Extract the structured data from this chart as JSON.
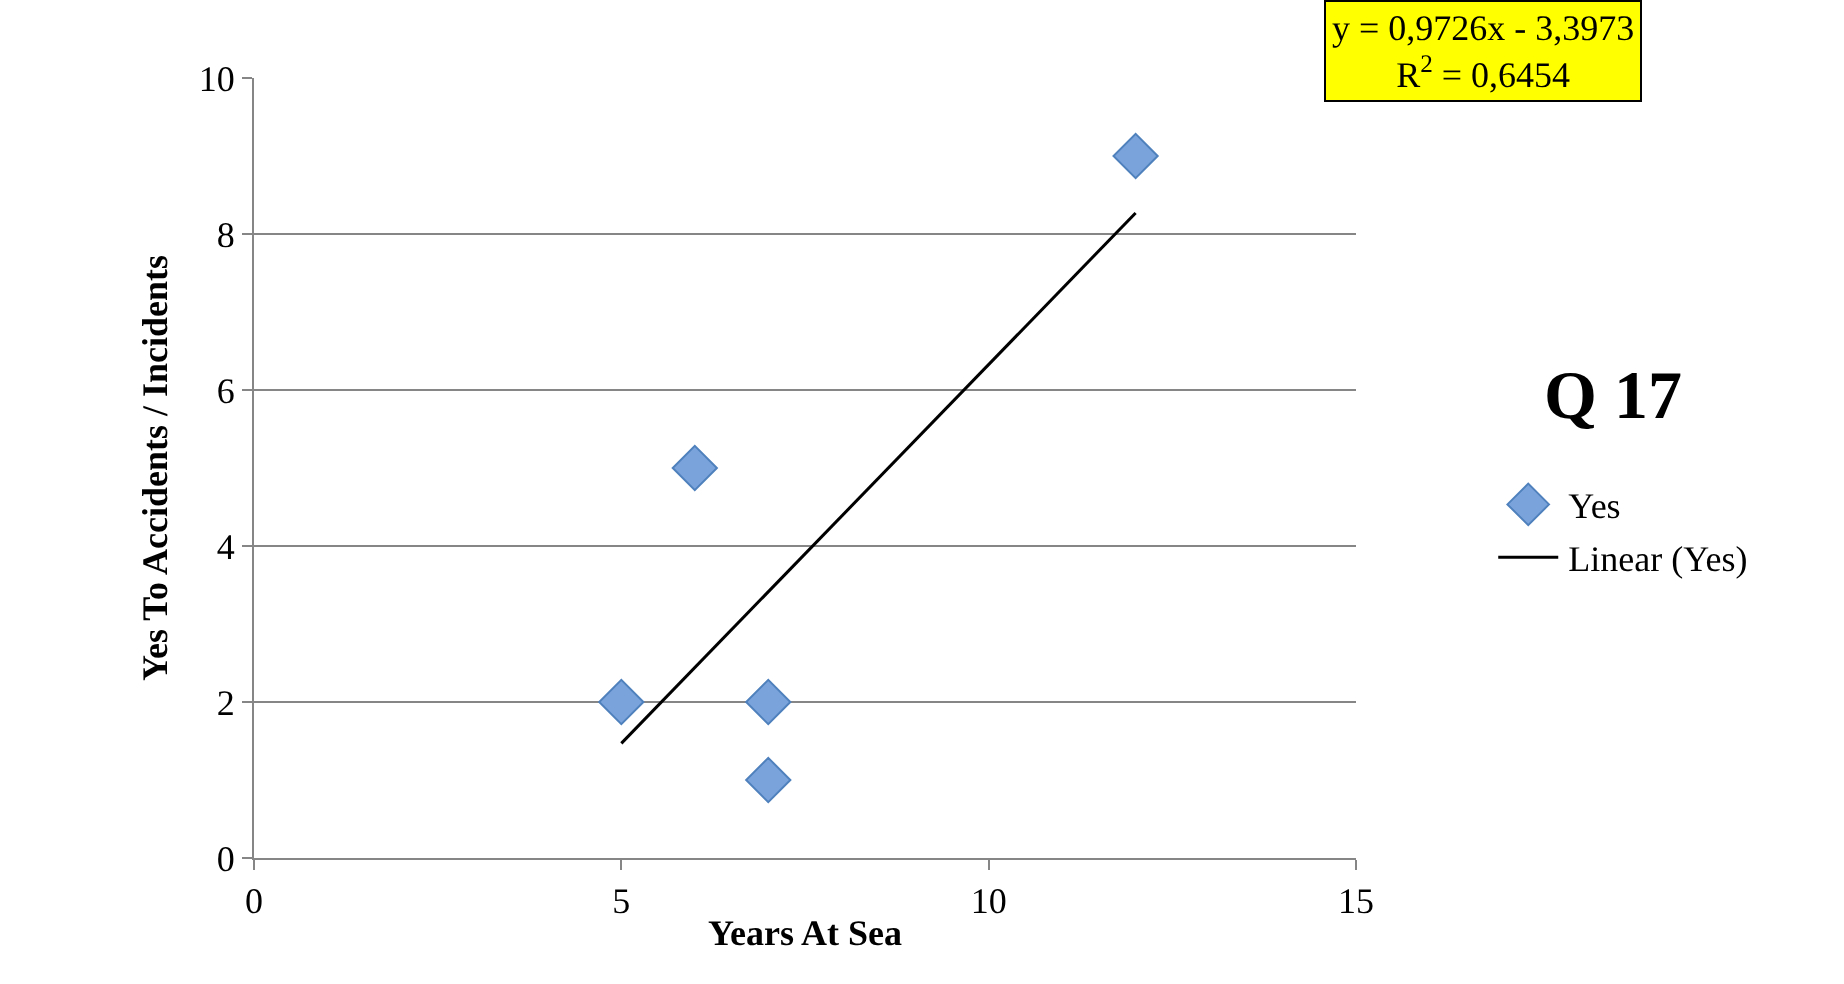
{
  "chart_data": {
    "type": "scatter",
    "title": "Q 17",
    "xlabel": "Years At Sea",
    "ylabel": "Yes To Accidents / Incidents",
    "series": [
      {
        "name": "Yes",
        "color": "#4f81bd",
        "x": [
          5,
          6,
          7,
          7,
          12
        ],
        "values": [
          2,
          5,
          2,
          1,
          9
        ],
        "marker": "diamond"
      },
      {
        "name": "Linear (Yes)",
        "type": "line",
        "color": "#000000",
        "x": [
          5,
          12
        ],
        "values": [
          1.47,
          8.27
        ],
        "marker": "none",
        "line_style": "solid"
      }
    ],
    "annotations": [
      "y = 0,9726x - 3,3973\nR$^{2}$ = 0,6454"
    ],
    "xlim": [
      0,
      15
    ],
    "xticks": [
      0,
      5,
      10,
      15
    ],
    "ylim": [
      0,
      10
    ],
    "yticks": [
      0,
      2,
      4,
      6,
      8,
      10
    ],
    "grid": "y",
    "legend": "right"
  }
}
